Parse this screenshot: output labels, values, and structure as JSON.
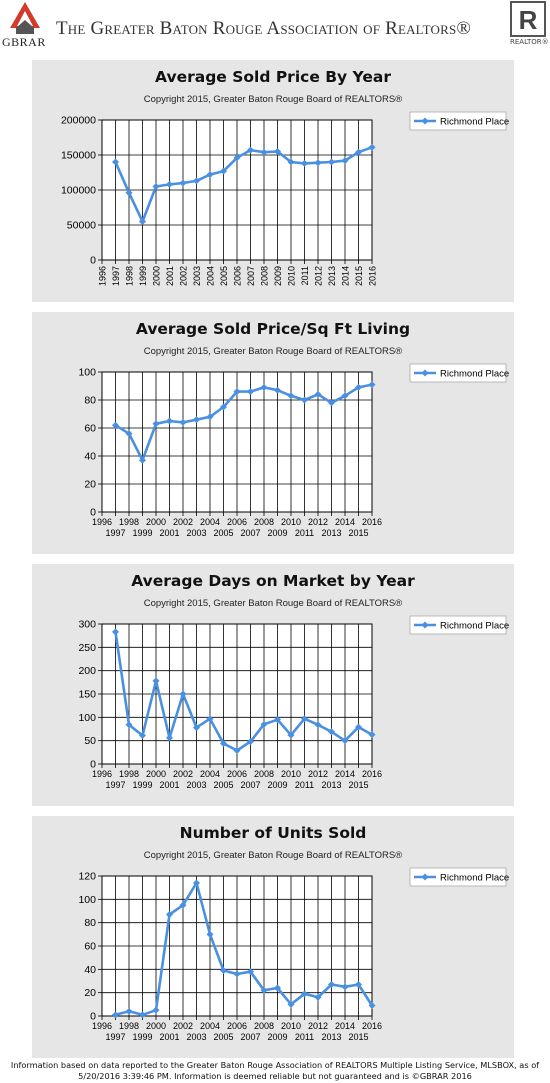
{
  "header": {
    "logo_left_text": "GBRAR",
    "title": "The Greater Baton Rouge Association of Realtors®",
    "logo_right_text": "REALTOR®"
  },
  "colors": {
    "line": "#4a90e2",
    "panel": "#e6e6e6"
  },
  "charts": [
    {
      "title": "Average Sold Price By Year",
      "subtitle": "Copyright 2015, Greater Baton Rouge Board of REALTORS®",
      "legend": "Richmond Place"
    },
    {
      "title": "Average Sold Price/Sq Ft Living",
      "subtitle": "Copyright 2015, Greater Baton Rouge Board of REALTORS®",
      "legend": "Richmond Place"
    },
    {
      "title": "Average Days on Market by Year",
      "subtitle": "Copyright 2015, Greater Baton Rouge Board of REALTORS®",
      "legend": "Richmond Place"
    },
    {
      "title": "Number of Units Sold",
      "subtitle": "Copyright 2015, Greater Baton Rouge Board of REALTORS®",
      "legend": "Richmond Place"
    }
  ],
  "chart_data": [
    {
      "type": "line",
      "title": "Average Sold Price By Year",
      "x": [
        1997,
        1998,
        1999,
        2000,
        2001,
        2002,
        2003,
        2004,
        2005,
        2006,
        2007,
        2008,
        2009,
        2010,
        2011,
        2012,
        2013,
        2014,
        2015,
        2016
      ],
      "x_ticks": [
        1996,
        1997,
        1998,
        1999,
        2000,
        2001,
        2002,
        2003,
        2004,
        2005,
        2006,
        2007,
        2008,
        2009,
        2010,
        2011,
        2012,
        2013,
        2014,
        2015,
        2016
      ],
      "x_tick_style": "vertical",
      "xlim": [
        1996,
        2016
      ],
      "ylim": [
        0,
        200000
      ],
      "y_ticks": [
        0,
        50000,
        100000,
        150000,
        200000
      ],
      "series": [
        {
          "name": "Richmond Place",
          "values": [
            140000,
            96000,
            55000,
            105000,
            108000,
            110000,
            113000,
            122000,
            127000,
            146000,
            157000,
            154000,
            155000,
            140000,
            138000,
            139000,
            140000,
            142000,
            154000,
            161000
          ]
        }
      ],
      "grid": true,
      "legend_position": "right"
    },
    {
      "type": "line",
      "title": "Average Sold Price/Sq Ft Living",
      "x": [
        1997,
        1998,
        1999,
        2000,
        2001,
        2002,
        2003,
        2004,
        2005,
        2006,
        2007,
        2008,
        2009,
        2010,
        2011,
        2012,
        2013,
        2014,
        2015,
        2016
      ],
      "x_ticks": [
        1996,
        1997,
        1998,
        1999,
        2000,
        2001,
        2002,
        2003,
        2004,
        2005,
        2006,
        2007,
        2008,
        2009,
        2010,
        2011,
        2012,
        2013,
        2014,
        2015,
        2016
      ],
      "x_tick_style": "staggered",
      "xlim": [
        1996,
        2016
      ],
      "ylim": [
        0,
        100
      ],
      "y_ticks": [
        0,
        20,
        40,
        60,
        80,
        100
      ],
      "series": [
        {
          "name": "Richmond Place",
          "values": [
            62,
            56,
            37,
            63,
            65,
            64,
            66,
            68,
            75,
            86,
            86,
            89,
            87,
            83,
            80,
            84,
            78,
            83,
            89,
            91
          ]
        }
      ],
      "grid": true,
      "legend_position": "right"
    },
    {
      "type": "line",
      "title": "Average Days on Market by Year",
      "x": [
        1997,
        1998,
        1999,
        2000,
        2001,
        2002,
        2003,
        2004,
        2005,
        2006,
        2007,
        2008,
        2009,
        2010,
        2011,
        2012,
        2013,
        2014,
        2015,
        2016
      ],
      "x_ticks": [
        1996,
        1997,
        1998,
        1999,
        2000,
        2001,
        2002,
        2003,
        2004,
        2005,
        2006,
        2007,
        2008,
        2009,
        2010,
        2011,
        2012,
        2013,
        2014,
        2015,
        2016
      ],
      "x_tick_style": "staggered",
      "xlim": [
        1996,
        2016
      ],
      "ylim": [
        0,
        300
      ],
      "y_ticks": [
        0,
        50,
        100,
        150,
        200,
        250,
        300
      ],
      "series": [
        {
          "name": "Richmond Place",
          "values": [
            283,
            84,
            61,
            178,
            56,
            150,
            78,
            97,
            44,
            29,
            48,
            85,
            95,
            62,
            97,
            84,
            69,
            50,
            79,
            63
          ]
        }
      ],
      "grid": true,
      "legend_position": "right"
    },
    {
      "type": "line",
      "title": "Number of Units Sold",
      "x": [
        1997,
        1998,
        1999,
        2000,
        2001,
        2002,
        2003,
        2004,
        2005,
        2006,
        2007,
        2008,
        2009,
        2010,
        2011,
        2012,
        2013,
        2014,
        2015,
        2016
      ],
      "x_ticks": [
        1996,
        1997,
        1998,
        1999,
        2000,
        2001,
        2002,
        2003,
        2004,
        2005,
        2006,
        2007,
        2008,
        2009,
        2010,
        2011,
        2012,
        2013,
        2014,
        2015,
        2016
      ],
      "x_tick_style": "staggered",
      "xlim": [
        1996,
        2016
      ],
      "ylim": [
        0,
        120
      ],
      "y_ticks": [
        0,
        20,
        40,
        60,
        80,
        100,
        120
      ],
      "series": [
        {
          "name": "Richmond Place",
          "values": [
            1,
            4,
            1,
            5,
            87,
            95,
            114,
            70,
            39,
            36,
            38,
            22,
            24,
            10,
            19,
            16,
            27,
            25,
            27,
            9
          ]
        }
      ],
      "grid": true,
      "legend_position": "right"
    }
  ],
  "footer": {
    "line1": "Information based on data reported to the Greater Baton Rouge Association of REALTORS Multiple Listing Service, MLSBOX, as of",
    "line2": "5/20/2016 3:39:46 PM. Information is deemed reliable but not guaranteed and is ©GBRAR 2016"
  }
}
